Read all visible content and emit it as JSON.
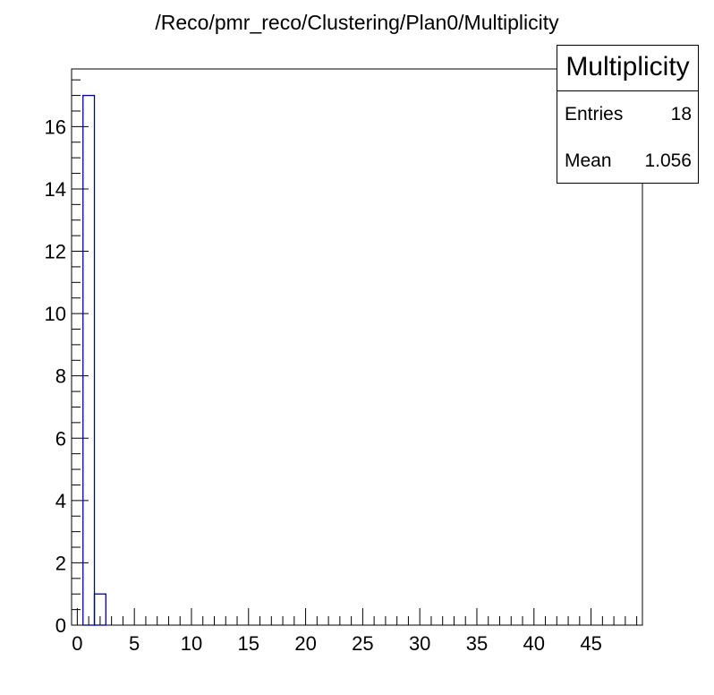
{
  "chart_data": {
    "type": "bar",
    "title": "/Reco/pmr_reco/Clustering/Plan0/Multiplicity",
    "xlabel": "",
    "ylabel": "",
    "xlim": [
      -0.5,
      49.5
    ],
    "ylim": [
      0,
      17.85
    ],
    "bin_width": 1,
    "x": [
      1,
      2
    ],
    "values": [
      17,
      1
    ],
    "x_ticks": [
      0,
      5,
      10,
      15,
      20,
      25,
      30,
      35,
      40,
      45
    ],
    "y_ticks": [
      0,
      2,
      4,
      6,
      8,
      10,
      12,
      14,
      16
    ],
    "line_color": "#000099",
    "grid": false,
    "legend": "top-right",
    "stats": {
      "name": "Multiplicity",
      "entries_label": "Entries",
      "entries": "18",
      "mean_label": "Mean",
      "mean": "1.056"
    }
  }
}
